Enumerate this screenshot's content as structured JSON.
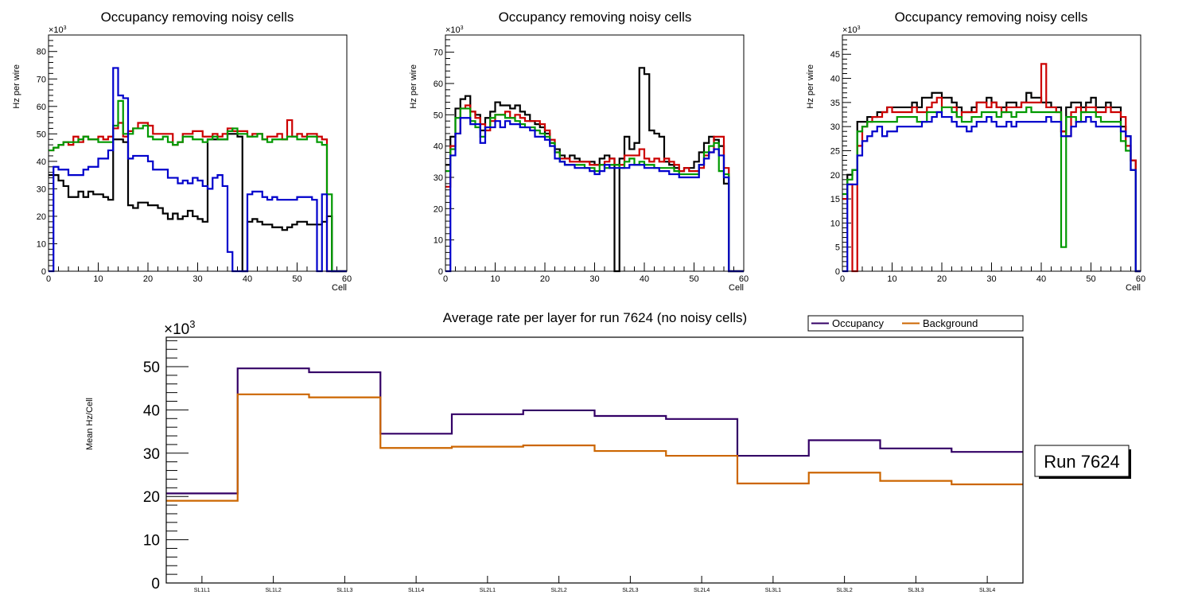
{
  "chart_data": [
    {
      "type": "line",
      "style": "step-histogram",
      "title": "Occupancy removing noisy cells",
      "xlabel": "Cell",
      "ylabel": "Hz per wire",
      "y_multiplier": "×10^3",
      "xlim": [
        0,
        60
      ],
      "ylim": [
        0,
        86
      ],
      "x_ticks": [
        0,
        10,
        20,
        30,
        40,
        50,
        60
      ],
      "y_ticks": [
        0,
        10,
        20,
        30,
        40,
        50,
        60,
        70,
        80
      ],
      "grid": false,
      "series": [
        {
          "name": "black",
          "color": "#000000",
          "values": [
            35,
            35,
            33,
            31,
            27,
            27,
            29,
            27,
            29,
            28,
            28,
            27,
            26,
            48,
            48,
            47,
            24,
            23,
            25,
            25,
            24,
            24,
            23,
            21,
            19,
            21,
            19,
            20,
            22,
            20,
            19,
            18,
            48,
            48,
            48,
            48,
            50,
            50,
            49,
            0,
            18,
            19,
            18,
            17,
            17,
            16,
            16,
            15,
            16,
            17,
            18,
            18,
            17,
            17,
            17,
            18,
            20,
            0,
            0,
            0
          ]
        },
        {
          "name": "red",
          "color": "#cc0000",
          "values": [
            44,
            45,
            46,
            47,
            46,
            49,
            47,
            49,
            48,
            48,
            49,
            48,
            49,
            52,
            54,
            49,
            51,
            52,
            54,
            54,
            53,
            50,
            50,
            50,
            50,
            46,
            47,
            50,
            50,
            51,
            51,
            49,
            49,
            50,
            49,
            50,
            52,
            51,
            51,
            51,
            49,
            50,
            50,
            48,
            49,
            49,
            50,
            48,
            55,
            49,
            50,
            49,
            50,
            50,
            49,
            48,
            0,
            0,
            0,
            0
          ]
        },
        {
          "name": "green",
          "color": "#009900",
          "values": [
            44,
            45,
            46,
            47,
            47,
            47,
            48,
            49,
            48,
            48,
            47,
            47,
            47,
            53,
            62,
            50,
            50,
            52,
            52,
            53,
            49,
            48,
            48,
            49,
            47,
            46,
            47,
            49,
            49,
            48,
            48,
            47,
            48,
            49,
            48,
            48,
            51,
            52,
            50,
            50,
            49,
            49,
            50,
            48,
            47,
            48,
            48,
            48,
            49,
            49,
            48,
            48,
            49,
            49,
            47,
            46,
            28,
            0,
            0,
            0
          ]
        },
        {
          "name": "blue",
          "color": "#0000cc",
          "values": [
            0,
            38,
            37,
            37,
            35,
            35,
            35,
            37,
            38,
            38,
            41,
            41,
            44,
            74,
            64,
            63,
            41,
            42,
            42,
            42,
            40,
            37,
            37,
            37,
            34,
            34,
            32,
            33,
            32,
            34,
            33,
            31,
            30,
            34,
            35,
            31,
            7,
            0,
            0,
            0,
            28,
            29,
            29,
            27,
            26,
            27,
            26,
            26,
            26,
            26,
            27,
            27,
            27,
            26,
            0,
            28,
            0,
            0,
            0,
            0
          ]
        }
      ]
    },
    {
      "type": "line",
      "style": "step-histogram",
      "title": "Occupancy removing noisy cells",
      "xlabel": "Cell",
      "ylabel": "Hz per wire",
      "y_multiplier": "×10^3",
      "xlim": [
        0,
        60
      ],
      "ylim": [
        0,
        75.5
      ],
      "x_ticks": [
        0,
        10,
        20,
        30,
        40,
        50,
        60
      ],
      "y_ticks": [
        0,
        10,
        20,
        30,
        40,
        50,
        60,
        70
      ],
      "grid": false,
      "series": [
        {
          "name": "black",
          "color": "#000000",
          "values": [
            34,
            43,
            52,
            55,
            56,
            51,
            50,
            45,
            49,
            51,
            54,
            53,
            53,
            52,
            53,
            51,
            50,
            48,
            47,
            46,
            44,
            41,
            39,
            37,
            36,
            37,
            36,
            35,
            35,
            35,
            34,
            36,
            37,
            36,
            0,
            36,
            43,
            39,
            41,
            65,
            63,
            45,
            44,
            43,
            35,
            34,
            33,
            32,
            33,
            33,
            35,
            38,
            41,
            43,
            42,
            40,
            28,
            0,
            0,
            0
          ]
        },
        {
          "name": "red",
          "color": "#cc0000",
          "values": [
            27,
            40,
            44,
            52,
            53,
            51,
            49,
            47,
            45,
            48,
            50,
            50,
            51,
            49,
            50,
            49,
            48,
            48,
            48,
            47,
            45,
            42,
            38,
            36,
            36,
            35,
            35,
            35,
            35,
            34,
            34,
            34,
            35,
            36,
            34,
            34,
            37,
            37,
            37,
            39,
            36,
            35,
            36,
            35,
            36,
            35,
            34,
            32,
            33,
            32,
            32,
            33,
            37,
            38,
            43,
            43,
            33,
            0,
            0,
            0
          ]
        },
        {
          "name": "green",
          "color": "#009900",
          "values": [
            32,
            39,
            49,
            52,
            52,
            48,
            46,
            43,
            46,
            49,
            50,
            50,
            49,
            49,
            48,
            47,
            46,
            46,
            45,
            44,
            43,
            41,
            38,
            35,
            34,
            34,
            34,
            34,
            33,
            33,
            32,
            34,
            33,
            34,
            34,
            33,
            35,
            36,
            34,
            35,
            34,
            34,
            33,
            33,
            33,
            33,
            32,
            31,
            31,
            31,
            31,
            34,
            38,
            40,
            41,
            32,
            31,
            0,
            0,
            0
          ]
        },
        {
          "name": "blue",
          "color": "#0000cc",
          "values": [
            0,
            37,
            44,
            49,
            49,
            47,
            47,
            41,
            46,
            46,
            48,
            46,
            48,
            47,
            47,
            46,
            46,
            45,
            43,
            43,
            42,
            40,
            36,
            35,
            34,
            34,
            33,
            33,
            33,
            32,
            31,
            32,
            34,
            33,
            33,
            33,
            33,
            34,
            34,
            34,
            33,
            33,
            33,
            32,
            32,
            31,
            31,
            30,
            30,
            30,
            30,
            34,
            36,
            38,
            39,
            37,
            30,
            0,
            0,
            0
          ]
        }
      ]
    },
    {
      "type": "line",
      "style": "step-histogram",
      "title": "Occupancy removing noisy cells",
      "xlabel": "Cell",
      "ylabel": "Hz per wire",
      "y_multiplier": "×10^3",
      "xlim": [
        0,
        60
      ],
      "ylim": [
        0,
        49
      ],
      "x_ticks": [
        0,
        10,
        20,
        30,
        40,
        50,
        60
      ],
      "y_ticks": [
        0,
        5,
        10,
        15,
        20,
        25,
        30,
        35,
        40,
        45
      ],
      "grid": false,
      "series": [
        {
          "name": "black",
          "color": "#000000",
          "values": [
            15,
            20,
            21,
            31,
            31,
            32,
            32,
            33,
            33,
            34,
            34,
            34,
            34,
            34,
            35,
            34,
            36,
            36,
            37,
            37,
            36,
            36,
            35,
            34,
            33,
            33,
            34,
            35,
            35,
            36,
            35,
            34,
            34,
            35,
            35,
            34,
            35,
            37,
            36,
            36,
            35,
            35,
            34,
            34,
            29,
            34,
            35,
            35,
            34,
            35,
            36,
            34,
            34,
            35,
            34,
            34,
            30,
            28,
            23,
            0
          ]
        },
        {
          "name": "red",
          "color": "#cc0000",
          "values": [
            15,
            18,
            0,
            26,
            30,
            31,
            32,
            32,
            33,
            34,
            33,
            33,
            33,
            33,
            34,
            33,
            33,
            34,
            35,
            36,
            34,
            34,
            34,
            32,
            33,
            33,
            33,
            35,
            35,
            34,
            35,
            34,
            33,
            34,
            34,
            34,
            35,
            35,
            35,
            35,
            43,
            34,
            34,
            33,
            29,
            28,
            33,
            34,
            33,
            34,
            34,
            33,
            33,
            34,
            33,
            33,
            32,
            26,
            23,
            0
          ]
        },
        {
          "name": "green",
          "color": "#009900",
          "values": [
            16,
            19,
            21,
            29,
            30,
            31,
            31,
            31,
            31,
            31,
            31,
            32,
            32,
            32,
            32,
            31,
            31,
            33,
            33,
            33,
            34,
            34,
            33,
            32,
            31,
            31,
            32,
            32,
            33,
            33,
            33,
            32,
            33,
            33,
            32,
            33,
            33,
            34,
            33,
            33,
            33,
            33,
            33,
            33,
            5,
            32,
            32,
            31,
            33,
            33,
            33,
            32,
            31,
            31,
            31,
            31,
            27,
            25,
            21,
            0
          ]
        },
        {
          "name": "blue",
          "color": "#0000cc",
          "values": [
            0,
            18,
            18,
            24,
            27,
            28,
            29,
            30,
            28,
            29,
            29,
            30,
            30,
            30,
            30,
            30,
            31,
            31,
            32,
            33,
            32,
            32,
            31,
            30,
            30,
            29,
            30,
            31,
            31,
            32,
            31,
            30,
            30,
            31,
            30,
            31,
            31,
            31,
            31,
            31,
            31,
            32,
            31,
            31,
            28,
            28,
            30,
            31,
            31,
            32,
            31,
            30,
            30,
            30,
            30,
            30,
            29,
            28,
            21,
            0
          ]
        }
      ]
    },
    {
      "type": "line",
      "style": "step-histogram",
      "title": "Average rate per layer for run 7624 (no noisy cells)",
      "xlabel": "",
      "ylabel": "Mean Hz/Cell",
      "y_multiplier": "×10^3",
      "categories": [
        "SL1L1",
        "SL1L2",
        "SL1L3",
        "SL1L4",
        "SL2L1",
        "SL2L2",
        "SL2L3",
        "SL2L4",
        "SL3L1",
        "SL3L2",
        "SL3L3",
        "SL3L4"
      ],
      "ylim": [
        0,
        56.8
      ],
      "y_ticks": [
        0,
        10,
        20,
        30,
        40,
        50
      ],
      "grid": false,
      "legend_position": "top-right",
      "series": [
        {
          "name": "Occupancy",
          "color": "#330066",
          "values": [
            20.7,
            49.6,
            48.7,
            34.5,
            39.0,
            39.9,
            38.6,
            37.9,
            29.4,
            33.0,
            31.1,
            30.3
          ]
        },
        {
          "name": "Background",
          "color": "#cc6600",
          "values": [
            19.0,
            43.6,
            42.9,
            31.2,
            31.5,
            31.8,
            30.5,
            29.4,
            23.0,
            25.5,
            23.6,
            22.8
          ]
        }
      ]
    }
  ],
  "run_label": "Run 7624"
}
